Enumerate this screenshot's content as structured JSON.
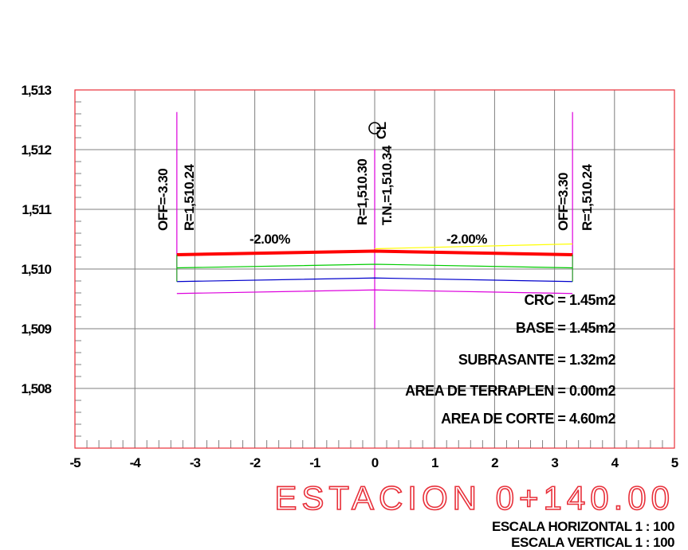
{
  "station": {
    "title": "ESTACION 0+140.00",
    "scale_horizontal": "ESCALA HORIZONTAL 1 : 100",
    "scale_vertical": "ESCALA VERTICAL 1 : 100"
  },
  "labels": {
    "left_offset": "OFF=-3.30",
    "left_rasante": "R=1,510.24",
    "center_rasante": "R=1,510.30",
    "center_tn": "T.N.=1,510.34",
    "right_offset": "OFF=3.30",
    "right_rasante": "R=1,510.24",
    "left_slope": "-2.00%",
    "right_slope": "-2.00%",
    "centerline_symbol": "CL"
  },
  "areas": [
    {
      "name": "CRC",
      "text": "CRC = 1.45m2"
    },
    {
      "name": "BASE",
      "text": "BASE = 1.45m2"
    },
    {
      "name": "SUBRASANTE",
      "text": "SUBRASANTE = 1.32m2"
    },
    {
      "name": "AREA DE TERRAPLEN",
      "text": "AREA DE TERRAPLEN = 0.00m2"
    },
    {
      "name": "AREA DE CORTE",
      "text": "AREA DE CORTE = 4.60m2"
    }
  ],
  "colors": {
    "frame": "#e8303a",
    "grid": "#7f7f7f",
    "rasante": "#ff0000",
    "terrain": "#ffff00",
    "crc": "#00cc00",
    "base": "#0000cc",
    "subrasante": "#dd00dd",
    "title": "#e8303a"
  },
  "chart_data": {
    "type": "line",
    "xlim": [
      -5,
      5
    ],
    "ylim": [
      1507,
      1513
    ],
    "x_ticks": [
      -5,
      -4,
      -3,
      -2,
      -1,
      0,
      1,
      2,
      3,
      4,
      5
    ],
    "x_tick_labels": [
      "-5",
      "-4",
      "-3",
      "-2",
      "-1",
      "0",
      "1",
      "2",
      "3",
      "4",
      "5"
    ],
    "y_ticks": [
      1508,
      1509,
      1510,
      1511,
      1512,
      1513
    ],
    "y_tick_labels": [
      "1,508",
      "1,509",
      "1,510",
      "1,511",
      "1,512",
      "1,513"
    ],
    "grid": true,
    "series": [
      {
        "name": "rasante",
        "x": [
          -3.3,
          0,
          3.3
        ],
        "y": [
          1510.24,
          1510.3,
          1510.24
        ]
      },
      {
        "name": "terreno natural",
        "x": [
          0,
          3.3
        ],
        "y": [
          1510.34,
          1510.42
        ]
      },
      {
        "name": "crc",
        "x": [
          -3.3,
          0,
          3.3
        ],
        "y": [
          1510.02,
          1510.08,
          1510.02
        ]
      },
      {
        "name": "base",
        "x": [
          -3.3,
          0,
          3.3
        ],
        "y": [
          1509.79,
          1509.85,
          1509.79
        ]
      },
      {
        "name": "subrasante",
        "x": [
          -3.3,
          0,
          3.3
        ],
        "y": [
          1509.59,
          1509.65,
          1509.59
        ]
      }
    ],
    "verticals": [
      {
        "x": -3.3,
        "y": [
          1509.79,
          1512.63
        ]
      },
      {
        "x": 0,
        "y": [
          1509.0,
          1512.0
        ]
      },
      {
        "x": 3.3,
        "y": [
          1509.79,
          1512.63
        ]
      }
    ]
  }
}
